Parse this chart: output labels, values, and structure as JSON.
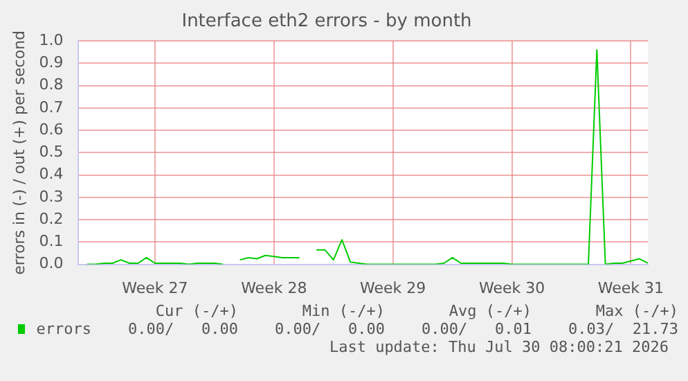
{
  "chart_data": {
    "type": "line",
    "title": "Interface eth2 errors - by month",
    "ylabel": "errors in (-) / out (+) per second",
    "categories": [
      null,
      null,
      null,
      null,
      null,
      null,
      null,
      null,
      null,
      "Week 27",
      null,
      null,
      null,
      null,
      null,
      null,
      null,
      null,
      null,
      null,
      null,
      null,
      null,
      "Week 28",
      null,
      null,
      null,
      null,
      null,
      null,
      null,
      null,
      null,
      null,
      null,
      null,
      null,
      "Week 29",
      null,
      null,
      null,
      null,
      null,
      null,
      null,
      null,
      null,
      null,
      null,
      null,
      null,
      "Week 30",
      null,
      null,
      null,
      null,
      null,
      null,
      null,
      null,
      null,
      null,
      null,
      null,
      null,
      "Week 31",
      null,
      null
    ],
    "series": [
      {
        "name": "errors",
        "color": "#00cc00",
        "values": [
          null,
          0.0,
          0.0,
          0.005,
          0.005,
          0.02,
          0.005,
          0.005,
          0.03,
          0.005,
          0.005,
          0.005,
          0.005,
          0.0,
          0.005,
          0.005,
          0.005,
          0.0,
          null,
          0.02,
          0.03,
          0.025,
          0.04,
          0.035,
          0.03,
          0.03,
          0.03,
          null,
          0.065,
          0.065,
          0.02,
          0.11,
          0.01,
          0.005,
          0.0,
          0.0,
          0.0,
          0.0,
          0.0,
          0.0,
          0.0,
          0.0,
          0.0,
          0.005,
          0.03,
          0.005,
          0.005,
          0.005,
          0.005,
          0.005,
          0.005,
          0.0,
          0.0,
          0.0,
          0.0,
          0.0,
          0.0,
          0.0,
          0.0,
          0.0,
          0.0,
          0.96,
          0.0,
          0.005,
          0.005,
          0.015,
          0.025,
          0.005
        ]
      }
    ],
    "ylim": [
      0,
      1
    ],
    "yticks": [
      {
        "value": 0,
        "label": "0.0"
      },
      {
        "value": 0.1,
        "label": "0.1"
      },
      {
        "value": 0.2,
        "label": "0.2"
      },
      {
        "value": 0.3,
        "label": "0.3"
      },
      {
        "value": 0.4,
        "label": "0.4"
      },
      {
        "value": 0.5,
        "label": "0.5"
      },
      {
        "value": 0.6,
        "label": "0.6"
      },
      {
        "value": 0.7,
        "label": "0.7"
      },
      {
        "value": 0.8,
        "label": "0.8"
      },
      {
        "value": 0.9,
        "label": "0.9"
      },
      {
        "value": 1,
        "label": "1.0"
      }
    ],
    "grid": true,
    "legend": "bottom",
    "marker": "none",
    "line_style": "solid",
    "annotations": [
      "Cur (-/+)",
      "Min (-/+)",
      "Avg (-/+)",
      "Max (-/+)",
      "0.00/   0.00",
      "0.00/   0.00",
      "0.00/   0.01",
      "0.03/  21.73",
      "Last update: Thu Jul 30 08:00:21 2026"
    ]
  }
}
